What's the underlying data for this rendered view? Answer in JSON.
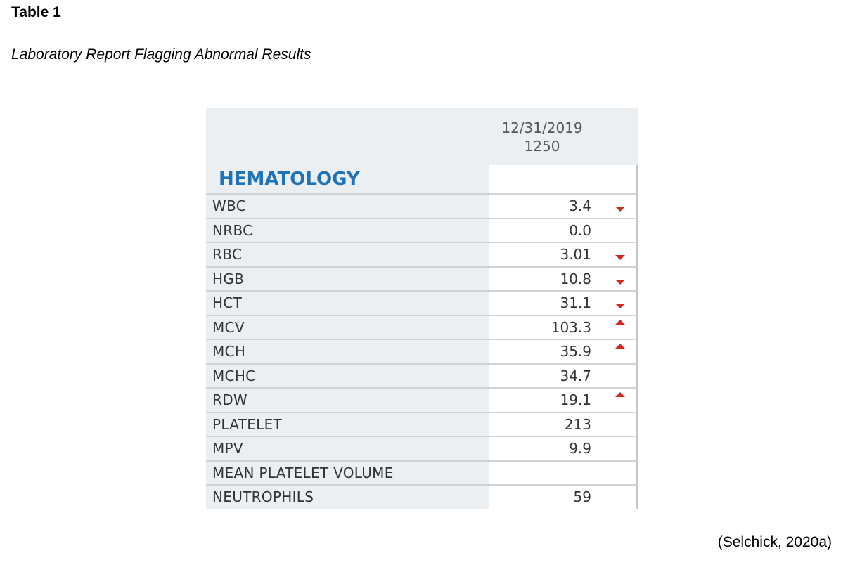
{
  "document": {
    "title": "Table 1",
    "caption": "Laboratory Report Flagging Abnormal Results",
    "citation": "(Selchick, 2020a)"
  },
  "report": {
    "date": "12/31/2019",
    "time": "1250",
    "section": "HEMATOLOGY",
    "flag_color": "#d9261c",
    "section_color": "#1f73b7",
    "rows": [
      {
        "name": "WBC",
        "value": "3.4",
        "flag": "low"
      },
      {
        "name": "NRBC",
        "value": "0.0",
        "flag": "none"
      },
      {
        "name": "RBC",
        "value": "3.01",
        "flag": "low"
      },
      {
        "name": "HGB",
        "value": "10.8",
        "flag": "low"
      },
      {
        "name": "HCT",
        "value": "31.1",
        "flag": "low"
      },
      {
        "name": "MCV",
        "value": "103.3",
        "flag": "high"
      },
      {
        "name": "MCH",
        "value": "35.9",
        "flag": "high"
      },
      {
        "name": "MCHC",
        "value": "34.7",
        "flag": "none"
      },
      {
        "name": "RDW",
        "value": "19.1",
        "flag": "high"
      },
      {
        "name": "PLATELET",
        "value": "213",
        "flag": "none"
      },
      {
        "name": "MPV",
        "value": "9.9",
        "flag": "none"
      },
      {
        "name": "MEAN PLATELET VOLUME",
        "value": "",
        "flag": "none"
      },
      {
        "name": "NEUTROPHILS",
        "value": "59",
        "flag": "none"
      }
    ]
  }
}
